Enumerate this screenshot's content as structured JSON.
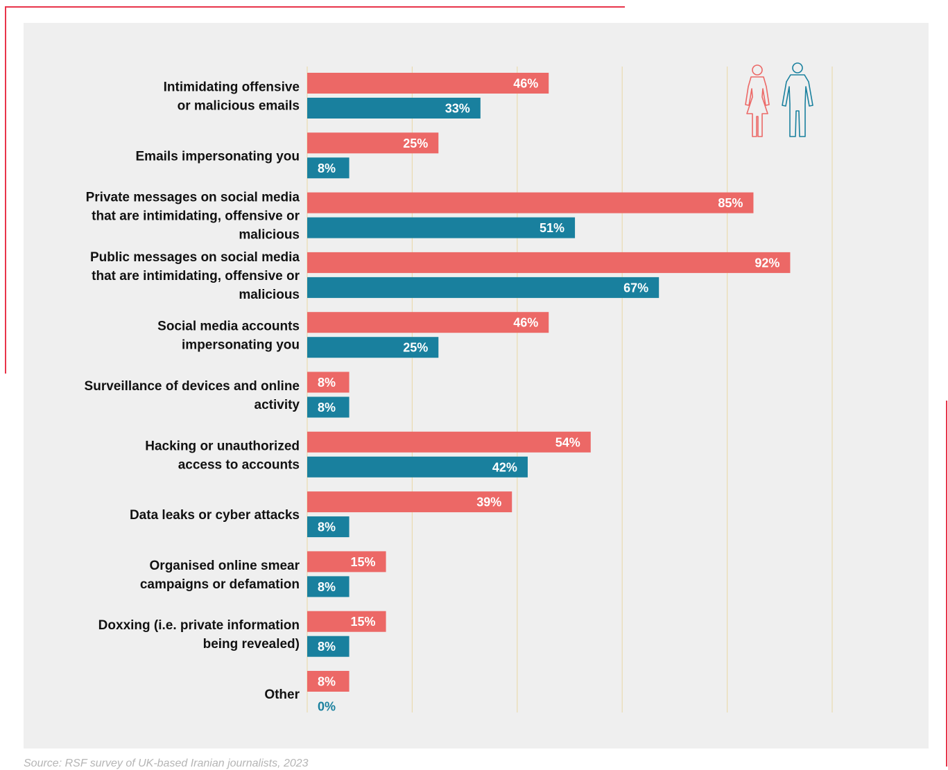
{
  "chart_data": {
    "type": "bar",
    "orientation": "horizontal",
    "categories": [
      [
        "Intimidating offensive",
        "or malicious emails"
      ],
      [
        "Emails impersonating you"
      ],
      [
        "Private messages on social media",
        "that are intimidating, offensive or",
        "malicious"
      ],
      [
        "Public messages on social media",
        "that are intimidating, offensive or",
        "malicious"
      ],
      [
        "Social media accounts",
        "impersonating you"
      ],
      [
        "Surveillance of devices and online",
        "activity"
      ],
      [
        "Hacking or unauthorized",
        "access to accounts"
      ],
      [
        "Data leaks or cyber attacks"
      ],
      [
        "Organised online smear",
        "campaigns or defamation"
      ],
      [
        "Doxxing (i.e. private information",
        "being revealed)"
      ],
      [
        "Other"
      ]
    ],
    "series": [
      {
        "legend_icon": "woman-icon",
        "color": "#ec6866",
        "values": [
          46,
          25,
          85,
          92,
          46,
          8,
          54,
          39,
          15,
          15,
          8
        ]
      },
      {
        "legend_icon": "man-icon",
        "color": "#19809e",
        "values": [
          33,
          8,
          51,
          67,
          25,
          8,
          42,
          8,
          8,
          8,
          0
        ]
      }
    ],
    "value_suffix": "%",
    "xlim": [
      0,
      100
    ],
    "gridlines": true,
    "grid_color": "#eadbb0",
    "legend": "top-right icons"
  },
  "source": "Source: RSF survey of UK-based Iranian journalists, 2023"
}
